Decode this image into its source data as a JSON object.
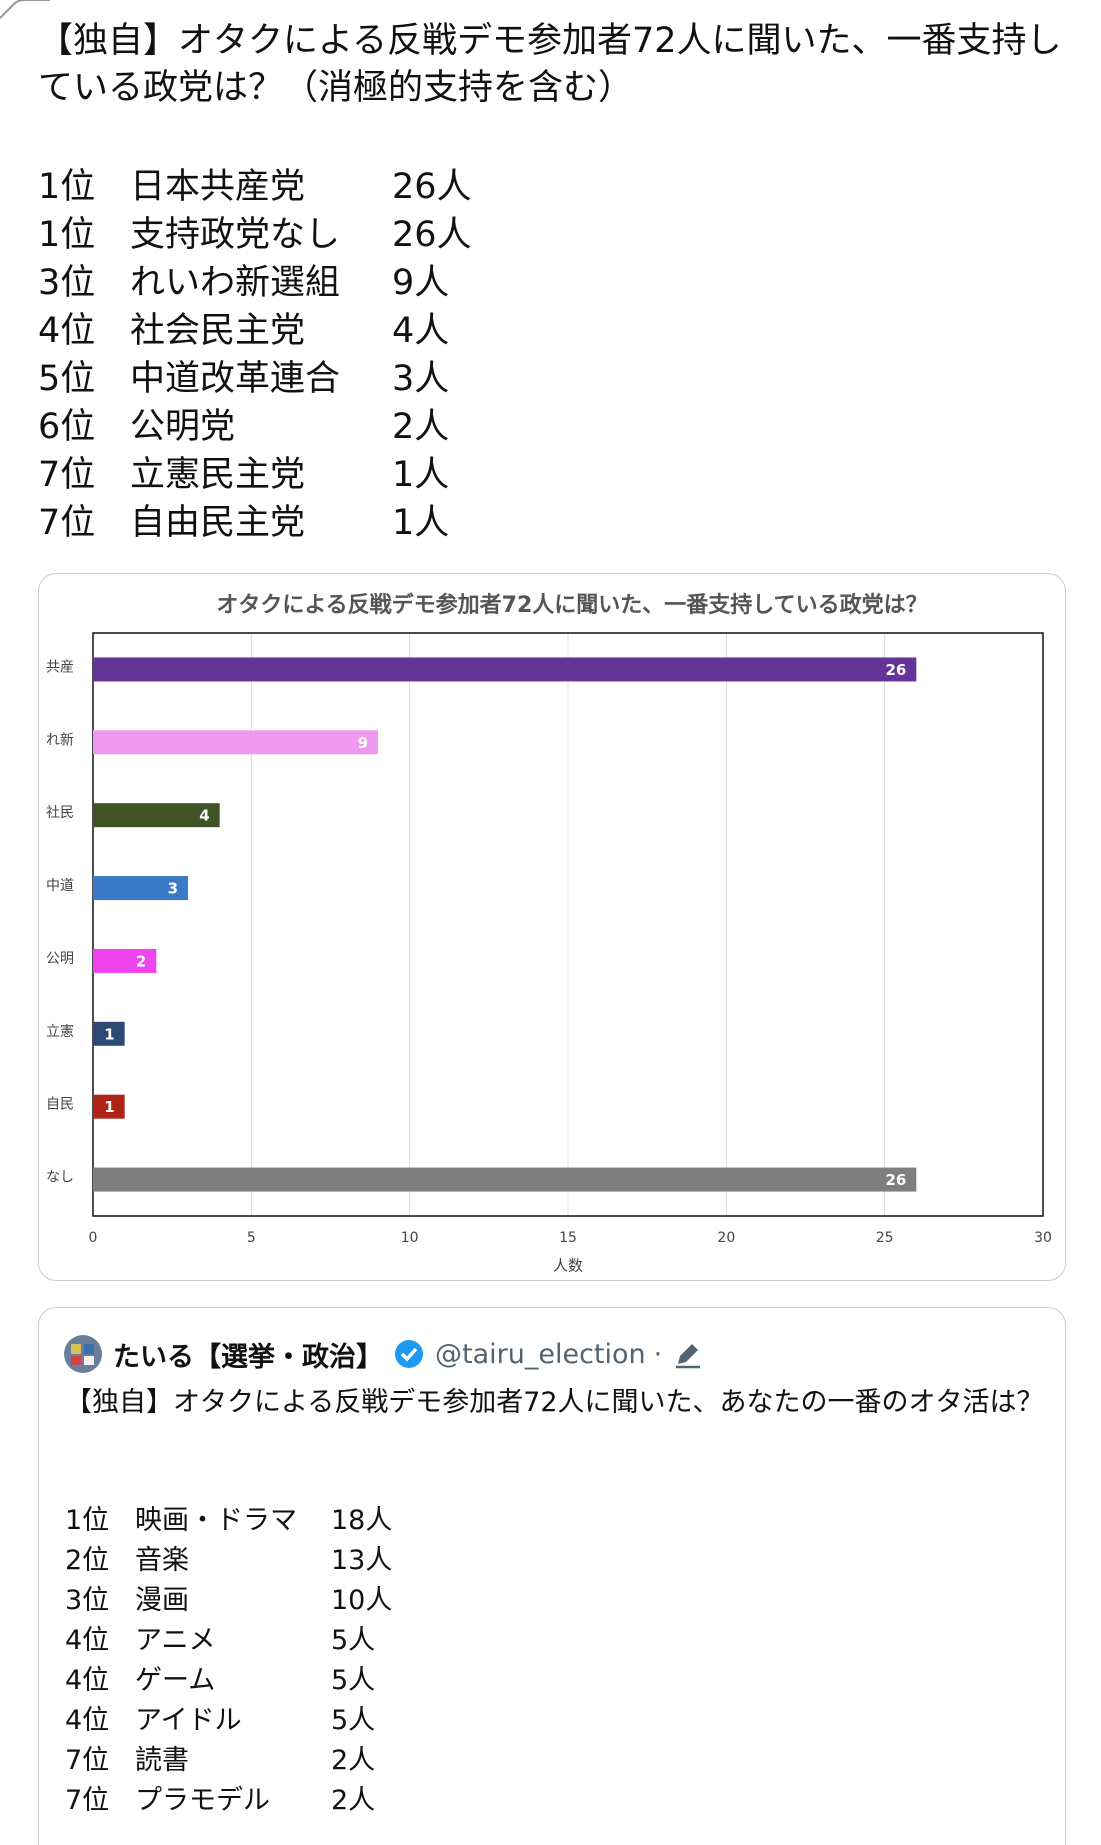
{
  "post": {
    "title": "【独自】オタクによる反戦デモ参加者72人に聞いた、一番支持している政党は？（消極的支持を含む）",
    "ranking": [
      [
        "1位",
        "日本共産党",
        "26人"
      ],
      [
        "1位",
        "支持政党なし",
        "26人"
      ],
      [
        "3位",
        "れいわ新選組",
        "9人"
      ],
      [
        "4位",
        "社会民主党",
        "4人"
      ],
      [
        "5位",
        "中道改革連合",
        "3人"
      ],
      [
        "6位",
        "公明党",
        "2人"
      ],
      [
        "7位",
        "立憲民主党",
        "1人"
      ],
      [
        "7位",
        "自由民主党",
        "1人"
      ]
    ]
  },
  "chart_data": {
    "type": "bar",
    "orientation": "horizontal",
    "title": "オタクによる反戦デモ参加者72人に聞いた、一番支持している政党は？",
    "categories": [
      "共産",
      "れ新",
      "社民",
      "中道",
      "公明",
      "立憲",
      "自民",
      "なし"
    ],
    "values": [
      26,
      9,
      4,
      3,
      2,
      1,
      1,
      26
    ],
    "colors": [
      "#663399",
      "#ee99ee",
      "#3f5324",
      "#3b7ac6",
      "#ee44ee",
      "#2d4a74",
      "#b02418",
      "#7f7f7f"
    ],
    "xlim": [
      0,
      30
    ],
    "xticks": [
      0,
      5,
      10,
      15,
      20,
      25,
      30
    ],
    "x_label": "人数",
    "grid": true
  },
  "quote": {
    "author": "たいる【選挙・政治】",
    "handle": "@tairu_election",
    "separator": "·",
    "text": "【独自】オタクによる反戦デモ参加者72人に聞いた、あなたの一番のオタ活は？",
    "ranking": [
      [
        "1位",
        "映画・ドラマ",
        "18人"
      ],
      [
        "2位",
        "音楽",
        "13人"
      ],
      [
        "3位",
        "漫画",
        "10人"
      ],
      [
        "4位",
        "アニメ",
        "5人"
      ],
      [
        "4位",
        "ゲーム",
        "5人"
      ],
      [
        "4位",
        "アイドル",
        "5人"
      ],
      [
        "7位",
        "読書",
        "2人"
      ],
      [
        "7位",
        "プラモデル",
        "2人"
      ]
    ]
  }
}
